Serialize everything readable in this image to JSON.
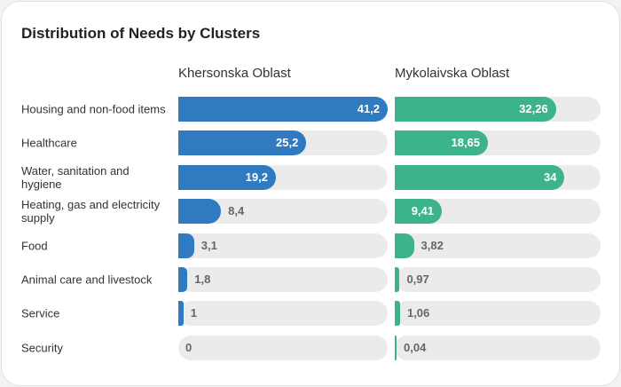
{
  "chart_data": {
    "type": "bar",
    "title": "Distribution of Needs by Clusters",
    "categories": [
      "Housing and non-food items",
      "Healthcare",
      "Water, sanitation and hygiene",
      "Heating, gas and electricity supply",
      "Food",
      "Animal care and livestock",
      "Service",
      "Security"
    ],
    "xlim": [
      0,
      41.2
    ],
    "series": [
      {
        "name": "Khersonska Oblast",
        "color": "#2f7ac0",
        "values": [
          41.2,
          25.2,
          19.2,
          8.4,
          3.1,
          1.8,
          1,
          0
        ],
        "value_labels": [
          "41,2",
          "25,2",
          "19,2",
          "8,4",
          "3,1",
          "1,8",
          "1",
          "0"
        ]
      },
      {
        "name": "Mykolaivska Oblast",
        "color": "#3db38a",
        "values": [
          32.26,
          18.65,
          34,
          9.41,
          3.82,
          0.97,
          1.06,
          0.04
        ],
        "value_labels": [
          "32,26",
          "18,65",
          "34",
          "9,41",
          "3,82",
          "0,97",
          "1,06",
          "0,04"
        ]
      }
    ]
  }
}
